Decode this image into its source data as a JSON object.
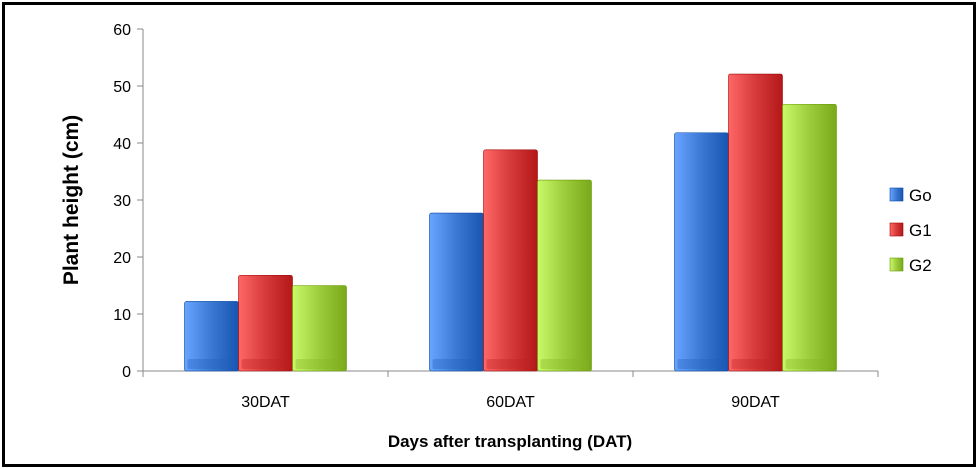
{
  "chart_data": {
    "type": "bar",
    "categories": [
      "30DAT",
      "60DAT",
      "90DAT"
    ],
    "series": [
      {
        "name": "Go",
        "values": [
          12.2,
          27.7,
          41.8
        ],
        "color": "#3a78d4"
      },
      {
        "name": "G1",
        "values": [
          16.8,
          38.8,
          52.1
        ],
        "color": "#d63a3a"
      },
      {
        "name": "G2",
        "values": [
          15.0,
          33.5,
          46.8
        ],
        "color": "#9ccc3c"
      }
    ],
    "title": "",
    "xlabel": "Days after transplanting (DAT)",
    "ylabel": "Plant height (cm)",
    "ylim": [
      0,
      60
    ],
    "yticks": [
      0,
      10,
      20,
      30,
      40,
      50,
      60
    ],
    "grid": false,
    "legend_position": "right"
  }
}
